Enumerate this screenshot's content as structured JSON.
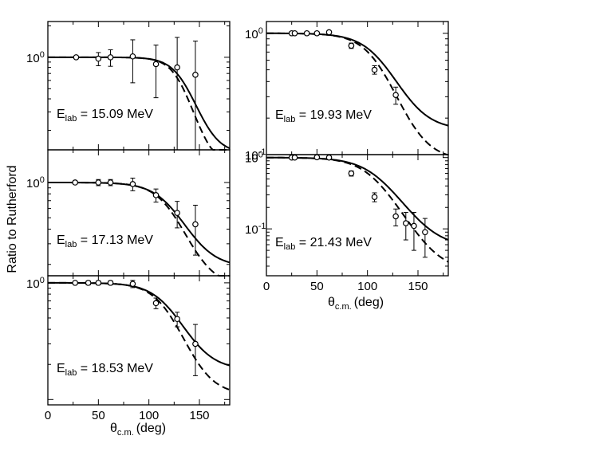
{
  "figure": {
    "ylabel": "Ratio to Rutherford",
    "xlabel_theta": "θ",
    "xlabel_sub": "c.m.",
    "xlabel_unit": "(deg)"
  },
  "chart_data": [
    {
      "type": "scatter",
      "panel": "left-top",
      "annotation": {
        "prefix": "E",
        "sub": "lab",
        "suffix": " = 15.09 MeV"
      },
      "xlim": [
        0,
        180
      ],
      "ylim_log": [
        0.13,
        2.2
      ],
      "y_tick_labels": [
        {
          "value": 1,
          "base": "10",
          "exp": "0"
        }
      ],
      "x_tick_labels": [],
      "points": [
        {
          "x": 28,
          "y": 1.0,
          "err": 0.03
        },
        {
          "x": 50,
          "y": 0.97,
          "err": 0.14
        },
        {
          "x": 62,
          "y": 1.0,
          "err": 0.18
        },
        {
          "x": 84,
          "y": 1.02,
          "err": 0.45
        },
        {
          "x": 107,
          "y": 0.86,
          "err": 0.45
        },
        {
          "x": 128,
          "y": 0.8,
          "err": 0.75
        },
        {
          "x": 146,
          "y": 0.68,
          "err": 0.75
        }
      ],
      "curve_solid": {
        "y_end": 0.12,
        "theta_half": 135,
        "width": 11
      },
      "curve_dashed": {
        "y_end": 0.09,
        "theta_half": 132,
        "width": 10
      }
    },
    {
      "type": "scatter",
      "panel": "left-middle",
      "annotation": {
        "prefix": "E",
        "sub": "lab",
        "suffix": " = 17.13 MeV"
      },
      "xlim": [
        0,
        180
      ],
      "ylim_log": [
        0.16,
        1.9
      ],
      "y_tick_labels": [
        {
          "value": 1,
          "base": "10",
          "exp": "0"
        }
      ],
      "x_tick_labels": [],
      "points": [
        {
          "x": 27,
          "y": 1.0,
          "err": 0.03
        },
        {
          "x": 50,
          "y": 1.0,
          "err": 0.06
        },
        {
          "x": 62,
          "y": 1.0,
          "err": 0.06
        },
        {
          "x": 84,
          "y": 0.97,
          "err": 0.12
        },
        {
          "x": 107,
          "y": 0.78,
          "err": 0.1
        },
        {
          "x": 128,
          "y": 0.55,
          "err": 0.14
        },
        {
          "x": 146,
          "y": 0.44,
          "err": 0.2
        }
      ],
      "curve_solid": {
        "y_end": 0.19,
        "theta_half": 123,
        "width": 15
      },
      "curve_dashed": {
        "y_end": 0.13,
        "theta_half": 122,
        "width": 14
      }
    },
    {
      "type": "scatter",
      "panel": "left-bottom",
      "annotation": {
        "prefix": "E",
        "sub": "lab",
        "suffix": " = 18.53 MeV"
      },
      "xlim": [
        0,
        180
      ],
      "ylim_log": [
        0.09,
        1.15
      ],
      "y_tick_labels": [
        {
          "value": 1,
          "base": "10",
          "exp": "0"
        }
      ],
      "x_tick_labels": [
        "0",
        "50",
        "100",
        "150"
      ],
      "points": [
        {
          "x": 27,
          "y": 1.0,
          "err": 0.03
        },
        {
          "x": 40,
          "y": 1.0,
          "err": 0.04
        },
        {
          "x": 50,
          "y": 1.0,
          "err": 0.04
        },
        {
          "x": 62,
          "y": 1.0,
          "err": 0.04
        },
        {
          "x": 84,
          "y": 0.98,
          "err": 0.07
        },
        {
          "x": 107,
          "y": 0.67,
          "err": 0.07
        },
        {
          "x": 128,
          "y": 0.49,
          "err": 0.07
        },
        {
          "x": 146,
          "y": 0.3,
          "err": 0.14
        }
      ],
      "curve_solid": {
        "y_end": 0.18,
        "theta_half": 121,
        "width": 15
      },
      "curve_dashed": {
        "y_end": 0.11,
        "theta_half": 119,
        "width": 14
      }
    },
    {
      "type": "scatter",
      "panel": "right-top",
      "annotation": {
        "prefix": "E",
        "sub": "lab",
        "suffix": " = 19.93 MeV"
      },
      "xlim": [
        0,
        180
      ],
      "ylim_log": [
        0.1,
        1.25
      ],
      "y_tick_labels": [
        {
          "value": 1,
          "base": "10",
          "exp": "0"
        },
        {
          "value": 0.1,
          "base": "10",
          "exp": "-1"
        }
      ],
      "x_tick_labels": [],
      "points": [
        {
          "x": 25,
          "y": 1.0,
          "err": 0.03
        },
        {
          "x": 28,
          "y": 1.0,
          "err": 0.03
        },
        {
          "x": 40,
          "y": 1.0,
          "err": 0.03
        },
        {
          "x": 50,
          "y": 1.0,
          "err": 0.03
        },
        {
          "x": 62,
          "y": 1.02,
          "err": 0.03
        },
        {
          "x": 84,
          "y": 0.79,
          "err": 0.04
        },
        {
          "x": 107,
          "y": 0.5,
          "err": 0.04
        },
        {
          "x": 128,
          "y": 0.31,
          "err": 0.05
        }
      ],
      "curve_solid": {
        "y_end": 0.16,
        "theta_half": 114,
        "width": 16
      },
      "curve_dashed": {
        "y_end": 0.09,
        "theta_half": 111,
        "width": 15
      }
    },
    {
      "type": "scatter",
      "panel": "right-bottom",
      "annotation": {
        "prefix": "E",
        "sub": "lab",
        "suffix": " = 21.43 MeV"
      },
      "xlim": [
        0,
        180
      ],
      "ylim_log": [
        0.022,
        1.1
      ],
      "y_tick_labels": [
        {
          "value": 1,
          "base": "10",
          "exp": "0"
        },
        {
          "value": 0.1,
          "base": "10",
          "exp": "-1"
        }
      ],
      "x_tick_labels": [
        "0",
        "50",
        "100",
        "150"
      ],
      "points": [
        {
          "x": 25,
          "y": 1.0,
          "err": 0.03
        },
        {
          "x": 28,
          "y": 1.0,
          "err": 0.03
        },
        {
          "x": 50,
          "y": 1.01,
          "err": 0.03
        },
        {
          "x": 62,
          "y": 1.0,
          "err": 0.03
        },
        {
          "x": 84,
          "y": 0.6,
          "err": 0.05
        },
        {
          "x": 107,
          "y": 0.28,
          "err": 0.04
        },
        {
          "x": 128,
          "y": 0.15,
          "err": 0.04
        },
        {
          "x": 138,
          "y": 0.12,
          "err": 0.05
        },
        {
          "x": 146,
          "y": 0.11,
          "err": 0.06
        },
        {
          "x": 157,
          "y": 0.09,
          "err": 0.05
        }
      ],
      "curve_solid": {
        "y_end": 0.055,
        "theta_half": 110,
        "width": 17
      },
      "curve_dashed": {
        "y_end": 0.025,
        "theta_half": 106,
        "width": 16
      }
    }
  ]
}
